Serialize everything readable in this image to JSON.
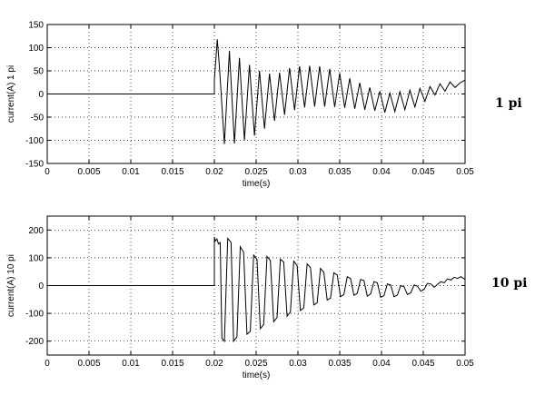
{
  "chart_data": [
    {
      "type": "line",
      "id": "top",
      "xlabel": "time(s)",
      "ylabel": "current(A) 1 pi",
      "side_label": "1 pi",
      "xlim": [
        0,
        0.05
      ],
      "ylim": [
        -150,
        150
      ],
      "xticks": [
        0,
        0.005,
        0.01,
        0.015,
        0.02,
        0.025,
        0.03,
        0.035,
        0.04,
        0.045,
        0.05
      ],
      "xtick_labels": [
        "0",
        "0.005",
        "0.01",
        "0.015",
        "0.02",
        "0.025",
        "0.03",
        "0.035",
        "0.04",
        "0.045",
        "0.05"
      ],
      "yticks": [
        -150,
        -100,
        -50,
        0,
        50,
        100,
        150
      ],
      "ytick_labels": [
        "-150",
        "-100",
        "-50",
        "0",
        "50",
        "100",
        "150"
      ],
      "grid": true,
      "series": [
        {
          "x": [
            0,
            0.02,
            0.02,
            0.02035,
            0.0206,
            0.0212,
            0.0218,
            0.0224,
            0.023,
            0.0236,
            0.0242,
            0.0248,
            0.0254,
            0.026,
            0.0266,
            0.0272,
            0.0278,
            0.0284,
            0.029,
            0.0296,
            0.0302,
            0.0308,
            0.0314,
            0.032,
            0.0326,
            0.0332,
            0.0338,
            0.0344,
            0.035,
            0.0356,
            0.0362,
            0.0368,
            0.0374,
            0.038,
            0.0386,
            0.0392,
            0.0398,
            0.0404,
            0.041,
            0.0416,
            0.0422,
            0.0428,
            0.0434,
            0.044,
            0.0446,
            0.0452,
            0.0458,
            0.0464,
            0.047,
            0.0476,
            0.0482,
            0.0488,
            0.0494,
            0.05
          ],
          "y": [
            0,
            0,
            30,
            118,
            60,
            -108,
            93,
            -107,
            78,
            -100,
            63,
            -90,
            50,
            -75,
            44,
            -58,
            46,
            -45,
            56,
            -35,
            60,
            -29,
            61,
            -27,
            60,
            -27,
            54,
            -28,
            45,
            -30,
            34,
            -32,
            24,
            -34,
            14,
            -36,
            6,
            -40,
            2,
            -38,
            5,
            -34,
            8,
            -28,
            12,
            -16,
            16,
            -2,
            22,
            6,
            26,
            14,
            24,
            30
          ]
        }
      ]
    },
    {
      "type": "line",
      "id": "bottom",
      "xlabel": "time(s)",
      "ylabel": "current(A) 10 pi",
      "side_label": "10 pi",
      "xlim": [
        0,
        0.05
      ],
      "ylim": [
        -250,
        250
      ],
      "xticks": [
        0,
        0.005,
        0.01,
        0.015,
        0.02,
        0.025,
        0.03,
        0.035,
        0.04,
        0.045,
        0.05
      ],
      "xtick_labels": [
        "0",
        "0.005",
        "0.01",
        "0.015",
        "0.02",
        "0.025",
        "0.03",
        "0.035",
        "0.04",
        "0.045",
        "0.05"
      ],
      "yticks": [
        -200,
        -100,
        0,
        100,
        200
      ],
      "ytick_labels": [
        "-200",
        "-100",
        "0",
        "100",
        "200"
      ],
      "grid": true,
      "series": [
        {
          "x": [
            0,
            0.02,
            0.02,
            0.0201,
            0.0203,
            0.0205,
            0.0207,
            0.0209,
            0.0212,
            0.0216,
            0.022,
            0.0223,
            0.0227,
            0.0231,
            0.0235,
            0.0239,
            0.0243,
            0.0247,
            0.0251,
            0.0255,
            0.0259,
            0.0263,
            0.0267,
            0.0271,
            0.0275,
            0.0279,
            0.0283,
            0.0287,
            0.0291,
            0.0295,
            0.0299,
            0.0303,
            0.0307,
            0.0311,
            0.0315,
            0.0319,
            0.0323,
            0.0327,
            0.0331,
            0.0335,
            0.0339,
            0.0343,
            0.0347,
            0.0351,
            0.0355,
            0.0359,
            0.0363,
            0.0367,
            0.0371,
            0.0375,
            0.0379,
            0.0383,
            0.0387,
            0.0391,
            0.0395,
            0.0399,
            0.0403,
            0.0407,
            0.0411,
            0.0415,
            0.0419,
            0.0423,
            0.0427,
            0.0431,
            0.0435,
            0.0439,
            0.0443,
            0.0447,
            0.0451,
            0.0455,
            0.0459,
            0.0463,
            0.0467,
            0.0471,
            0.0475,
            0.0479,
            0.0483,
            0.0487,
            0.0491,
            0.0495,
            0.05
          ],
          "y": [
            0,
            0,
            175,
            160,
            168,
            150,
            155,
            -190,
            -200,
            170,
            155,
            -200,
            -185,
            140,
            120,
            -175,
            -165,
            110,
            95,
            -155,
            -140,
            105,
            90,
            -130,
            -115,
            95,
            85,
            -110,
            -95,
            88,
            72,
            -90,
            -80,
            78,
            65,
            -70,
            -62,
            62,
            48,
            -52,
            -45,
            46,
            38,
            -40,
            -32,
            32,
            25,
            -35,
            -28,
            22,
            18,
            -38,
            -30,
            14,
            10,
            -42,
            -36,
            6,
            2,
            -40,
            -34,
            0,
            -4,
            -32,
            -26,
            2,
            -2,
            -20,
            -14,
            8,
            6,
            -6,
            4,
            14,
            10,
            24,
            20,
            30,
            26,
            32,
            22
          ]
        }
      ]
    }
  ]
}
